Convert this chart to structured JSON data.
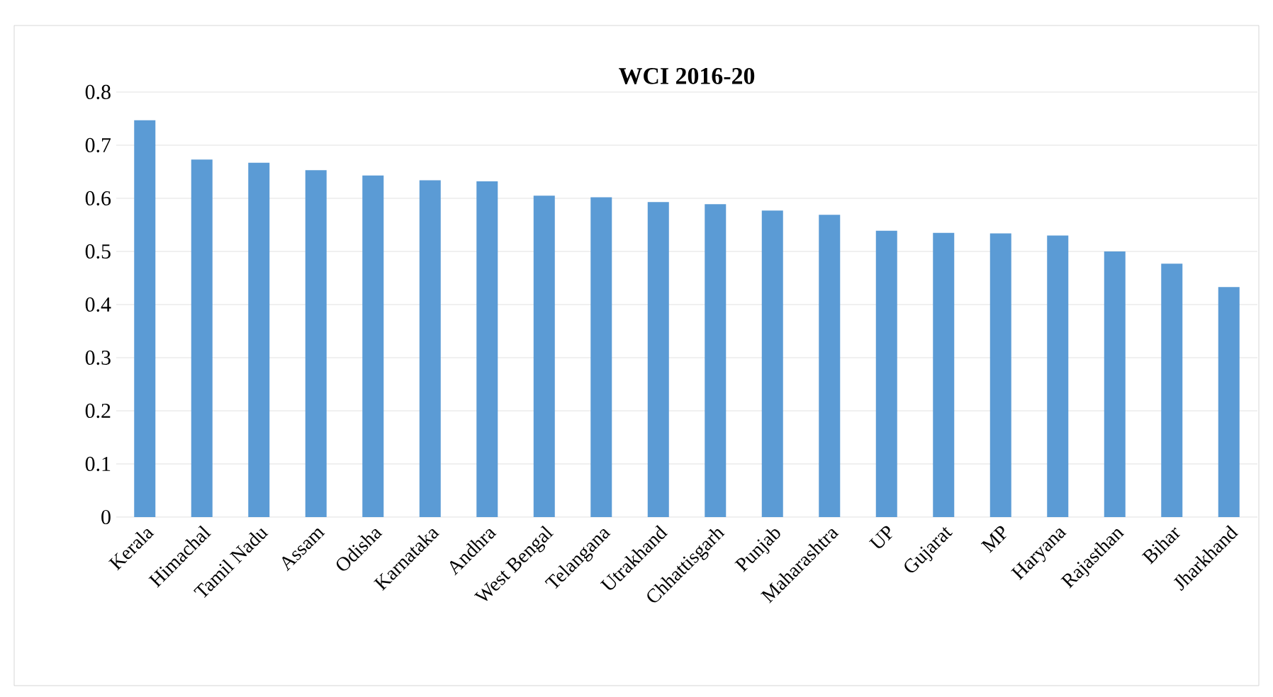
{
  "chart_data": {
    "type": "bar",
    "title": "WCI 2016-20",
    "categories": [
      "Kerala",
      "Himachal",
      "Tamil Nadu",
      "Assam",
      "Odisha",
      "Karnataka",
      "Andhra",
      "West Bengal",
      "Telangana",
      "Utrakhand",
      "Chhattisgarh",
      "Punjab",
      "Maharashtra",
      "UP",
      "Gujarat",
      "MP",
      "Haryana",
      "Rajasthan",
      "Bihar",
      "Jharkhand"
    ],
    "values": [
      0.747,
      0.673,
      0.667,
      0.653,
      0.643,
      0.634,
      0.632,
      0.605,
      0.602,
      0.593,
      0.589,
      0.577,
      0.569,
      0.539,
      0.535,
      0.534,
      0.53,
      0.5,
      0.477,
      0.433
    ],
    "color": "#5b9bd5",
    "ylim": [
      0,
      0.8
    ],
    "yticks": [
      0,
      0.1,
      0.2,
      0.3,
      0.4,
      0.5,
      0.6,
      0.7,
      0.8
    ],
    "grid": "y"
  }
}
